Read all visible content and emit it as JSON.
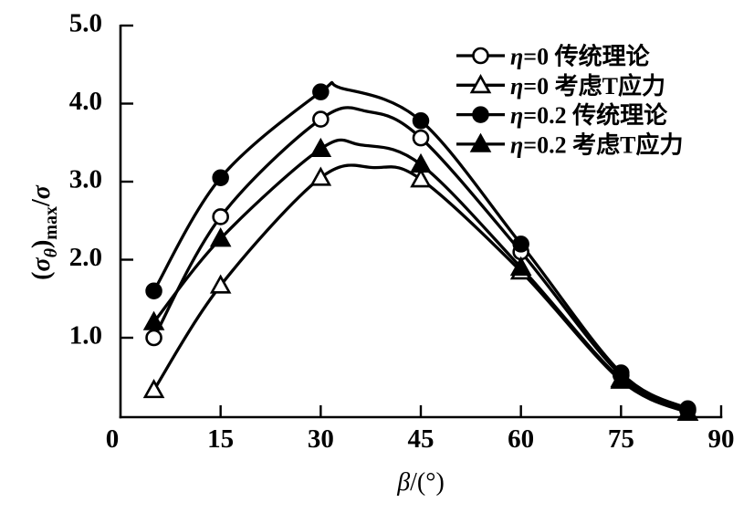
{
  "figure": {
    "background": "#ffffff",
    "ink": "#000000"
  },
  "chart_data": {
    "type": "line",
    "title": "",
    "xlabel": "β/(°)",
    "ylabel": "(σθ)max/σ",
    "ylabel_parts": [
      {
        "t": "(",
        "italic": false,
        "sub": false
      },
      {
        "t": "σ",
        "italic": true,
        "sub": false
      },
      {
        "t": "θ",
        "italic": true,
        "sub": true
      },
      {
        "t": ")",
        "italic": false,
        "sub": false
      },
      {
        "t": "max",
        "italic": false,
        "sub": true
      },
      {
        "t": "/",
        "italic": false,
        "sub": false
      },
      {
        "t": "σ",
        "italic": true,
        "sub": false
      }
    ],
    "xlabel_parts": [
      {
        "t": "β",
        "italic": true,
        "sub": false
      },
      {
        "t": "/(°)",
        "italic": false,
        "sub": false
      }
    ],
    "xlim": [
      0,
      90
    ],
    "ylim": [
      0,
      5
    ],
    "x_ticks": [
      {
        "v": 0,
        "label": "0"
      },
      {
        "v": 15,
        "label": "15"
      },
      {
        "v": 30,
        "label": "30"
      },
      {
        "v": 45,
        "label": "45"
      },
      {
        "v": 60,
        "label": "60"
      },
      {
        "v": 75,
        "label": "75"
      },
      {
        "v": 90,
        "label": "90"
      }
    ],
    "y_ticks": [
      {
        "v": 1,
        "label": "1.0"
      },
      {
        "v": 2,
        "label": "2.0"
      },
      {
        "v": 3,
        "label": "3.0"
      },
      {
        "v": 4,
        "label": "4.0"
      },
      {
        "v": 5,
        "label": "5.0"
      }
    ],
    "grid": false,
    "legend_position": "top-right-inside",
    "series": [
      {
        "key": "eta0-traditional",
        "name": "η=0 传统理论",
        "marker": "circle-open",
        "points": [
          [
            5,
            1.0
          ],
          [
            15,
            2.55
          ],
          [
            30,
            3.8
          ],
          [
            45,
            3.56
          ],
          [
            60,
            2.1
          ],
          [
            75,
            0.52
          ],
          [
            85,
            0.07
          ]
        ],
        "curve_hints": [
          [
            37,
            3.9
          ]
        ]
      },
      {
        "key": "eta0-tstress",
        "name": "η=0 考虑T应力",
        "marker": "triangle-open",
        "points": [
          [
            5,
            0.33
          ],
          [
            15,
            1.67
          ],
          [
            30,
            3.05
          ],
          [
            45,
            3.03
          ],
          [
            60,
            1.85
          ],
          [
            75,
            0.45
          ],
          [
            85,
            0.04
          ]
        ],
        "curve_hints": [
          [
            38,
            3.18
          ]
        ]
      },
      {
        "key": "eta02-traditional",
        "name": "η=0.2 传统理论",
        "marker": "circle-filled",
        "points": [
          [
            5,
            1.6
          ],
          [
            15,
            3.05
          ],
          [
            30,
            4.15
          ],
          [
            45,
            3.78
          ],
          [
            60,
            2.2
          ],
          [
            75,
            0.55
          ],
          [
            85,
            0.09
          ]
        ],
        "curve_hints": [
          [
            33,
            4.2
          ]
        ]
      },
      {
        "key": "eta02-tstress",
        "name": "η=0.2 考虑T应力",
        "marker": "triangle-filled",
        "points": [
          [
            5,
            1.2
          ],
          [
            15,
            2.27
          ],
          [
            30,
            3.42
          ],
          [
            45,
            3.22
          ],
          [
            60,
            1.9
          ],
          [
            75,
            0.47
          ],
          [
            85,
            0.04
          ]
        ],
        "curve_hints": [
          [
            36,
            3.47
          ]
        ]
      }
    ]
  }
}
